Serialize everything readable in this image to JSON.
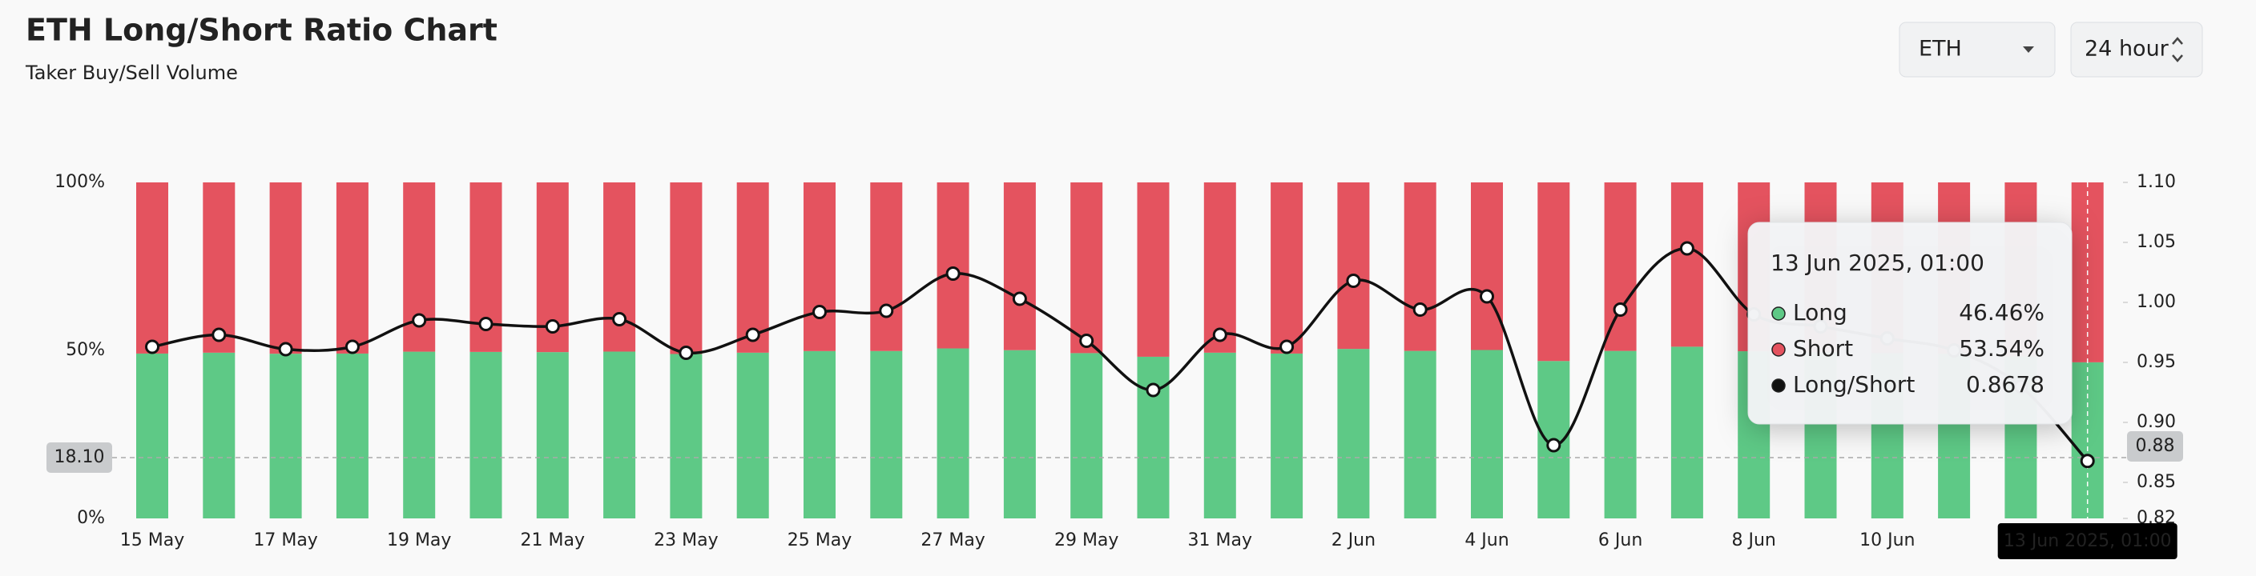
{
  "header": {
    "title": "ETH Long/Short Ratio Chart",
    "subtitle": "Taker Buy/Sell Volume",
    "asset_select": "ETH",
    "period_select": "24 hour"
  },
  "chart_data": {
    "type": "stacked-bar-line",
    "categories": [
      "15 May",
      null,
      "17 May",
      null,
      "19 May",
      null,
      "21 May",
      null,
      "23 May",
      null,
      "25 May",
      null,
      "27 May",
      null,
      "29 May",
      null,
      "31 May",
      null,
      "2 Jun",
      null,
      "4 Jun",
      null,
      "6 Jun",
      null,
      "8 Jun",
      null,
      "10 Jun",
      null,
      null,
      null
    ],
    "series": [
      {
        "name": "Long",
        "color": "#5ec986",
        "values": [
          49.06,
          49.32,
          49.01,
          49.06,
          49.62,
          49.55,
          49.49,
          49.65,
          48.93,
          49.32,
          49.8,
          49.82,
          50.59,
          50.07,
          49.19,
          48.11,
          49.32,
          49.06,
          50.45,
          49.85,
          50.12,
          46.84,
          49.85,
          51.1,
          49.75,
          49.49,
          49.24,
          48.98,
          48.19,
          46.46
        ]
      },
      {
        "name": "Short",
        "color": "#e4535f",
        "values": [
          50.94,
          50.68,
          50.99,
          50.94,
          50.38,
          50.45,
          50.51,
          50.35,
          51.07,
          50.68,
          50.2,
          50.18,
          49.41,
          49.93,
          50.81,
          51.89,
          50.68,
          50.94,
          49.55,
          50.15,
          49.88,
          53.16,
          50.15,
          48.9,
          50.25,
          50.51,
          50.76,
          51.02,
          51.81,
          53.54
        ]
      },
      {
        "name": "Long/Short",
        "color": "#111111",
        "axis": "y2",
        "values": [
          0.963,
          0.973,
          0.961,
          0.963,
          0.985,
          0.982,
          0.98,
          0.986,
          0.958,
          0.973,
          0.992,
          0.993,
          1.024,
          1.003,
          0.968,
          0.927,
          0.973,
          0.963,
          1.018,
          0.994,
          1.005,
          0.881,
          0.994,
          1.045,
          0.99,
          0.98,
          0.97,
          0.96,
          0.93,
          0.8678
        ]
      }
    ],
    "ylim": [
      0,
      100
    ],
    "yticks": [
      {
        "value": 0,
        "label": "0%"
      },
      {
        "value": 50,
        "label": "50%"
      },
      {
        "value": 100,
        "label": "100%"
      }
    ],
    "y2lim": [
      0.82,
      1.1
    ],
    "y2ticks": [
      0.82,
      0.85,
      {
        "value": 0.9,
        "label": "0.90"
      },
      0.95,
      {
        "value": 1,
        "label": "1.00"
      },
      1.05,
      {
        "value": 1.1,
        "label": "1.10"
      }
    ],
    "crosshair": {
      "y_left": {
        "value": 18.1,
        "label": "18.10"
      },
      "y_right": 0.88,
      "x_label": "13 Jun 2025, 01:00"
    },
    "tooltip": {
      "title": "13 Jun 2025, 01:00",
      "value_labels": [
        "46.46%",
        "53.54%",
        "0.8678"
      ]
    }
  }
}
